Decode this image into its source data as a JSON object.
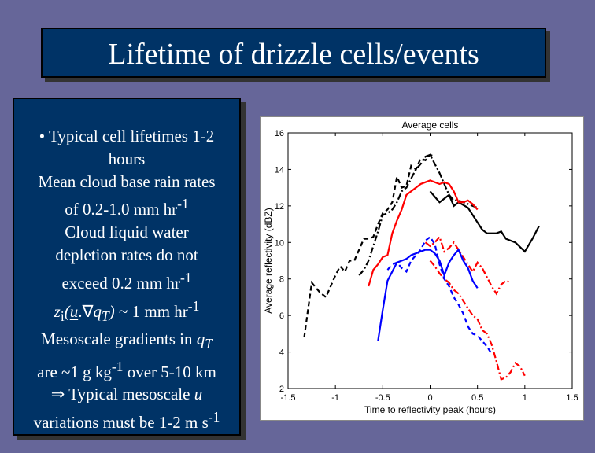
{
  "slide": {
    "title": "Lifetime of drizzle cells/events",
    "bullets": {
      "l1": "• Typical cell lifetimes 1-2",
      "l2": "hours",
      "l3": "Mean cloud base rain rates",
      "l4a": "of 0.2-1.0 mm hr",
      "l4sup": "-1",
      "l5": "Cloud liquid water",
      "l6": "depletion rates do not",
      "l7a": "exceed 0.2 mm hr",
      "l7sup": "-1",
      "l8_z": "z",
      "l8_i": "i",
      "l8_open": "(",
      "l8_u": "u",
      "l8_dot": ".",
      "l8_nabla": "∇",
      "l8_q": "q",
      "l8_T": "T",
      "l8_close": ")",
      "l8_rest": " ~ 1 mm hr",
      "l8sup": "-1",
      "l9a": "Mesoscale gradients in ",
      "l9_q": "q",
      "l9_T": "T",
      "l10a": "are ~1 g kg",
      "l10sup": "-1",
      "l10b": " over 5-10 km",
      "l11a": "⇒ Typical mesoscale ",
      "l11_u": "u",
      "l12a": "variations must be 1-2 m s",
      "l12sup": "-1"
    }
  },
  "chart_data": {
    "type": "line",
    "title": "Average cells",
    "xlabel": "Time to reflectivity peak (hours)",
    "ylabel": "Average reflectivity (dBZ)",
    "xlim": [
      -1.5,
      1.5
    ],
    "ylim": [
      2,
      16
    ],
    "xticks": [
      -1.5,
      -1,
      -0.5,
      0,
      0.5,
      1,
      1.5
    ],
    "xtick_labels": [
      "-1.5",
      "-1",
      "-0.5",
      "0",
      "0.5",
      "1",
      "1.5"
    ],
    "yticks": [
      2,
      4,
      6,
      8,
      10,
      12,
      14,
      16
    ],
    "ytick_labels": [
      "2",
      "4",
      "6",
      "8",
      "10",
      "12",
      "14",
      "16"
    ],
    "series": [
      {
        "color": "#000000",
        "dash": "dashed",
        "x": [
          -1.33,
          -1.25,
          -1.17,
          -1.1,
          -1.0,
          -0.95,
          -0.9,
          -0.85,
          -0.8,
          -0.7,
          -0.65,
          -0.6,
          -0.55,
          -0.5,
          -0.45,
          -0.4,
          -0.35,
          -0.3,
          -0.25,
          -0.2,
          -0.15,
          -0.1,
          -0.05,
          0.0,
          0.05
        ],
        "y": [
          4.8,
          7.8,
          7.3,
          7.0,
          8.2,
          8.7,
          8.4,
          9.0,
          9.0,
          10.2,
          10.2,
          10.3,
          11.0,
          11.6,
          11.8,
          12.2,
          13.6,
          13.0,
          13.1,
          14.2,
          14.0,
          14.6,
          14.5,
          14.8,
          14.7
        ]
      },
      {
        "color": "#000000",
        "dash": "dashdot",
        "x": [
          -0.75,
          -0.7,
          -0.65,
          -0.6,
          -0.55,
          -0.5,
          -0.45,
          -0.4,
          -0.35,
          -0.3,
          -0.25,
          -0.2,
          -0.15,
          -0.1,
          -0.05,
          0.0,
          0.05,
          0.1,
          0.15,
          0.2,
          0.25,
          0.3,
          0.35,
          0.4,
          0.45,
          0.5
        ],
        "y": [
          8.2,
          8.5,
          9.0,
          9.8,
          10.6,
          11.5,
          11.6,
          11.8,
          12.2,
          12.8,
          13.0,
          13.5,
          14.0,
          14.3,
          14.7,
          14.8,
          14.3,
          13.8,
          13.2,
          12.6,
          12.3,
          12.3,
          12.2,
          12.1,
          12.0,
          11.9
        ]
      },
      {
        "color": "#000000",
        "dash": "solid",
        "x": [
          0.0,
          0.1,
          0.2,
          0.25,
          0.3,
          0.4,
          0.5,
          0.55,
          0.6,
          0.7,
          0.75,
          0.8,
          0.9,
          1.0,
          1.08,
          1.15
        ],
        "y": [
          12.8,
          12.2,
          12.6,
          12.0,
          12.2,
          11.9,
          11.1,
          10.7,
          10.5,
          10.5,
          10.6,
          10.2,
          10.0,
          9.5,
          10.2,
          10.9
        ]
      },
      {
        "color": "#ff0000",
        "dash": "solid",
        "x": [
          -0.65,
          -0.6,
          -0.55,
          -0.5,
          -0.45,
          -0.4,
          -0.35,
          -0.3,
          -0.25,
          -0.2,
          -0.15,
          -0.1,
          -0.05,
          0.0,
          0.05,
          0.1,
          0.15,
          0.2,
          0.25,
          0.3,
          0.35,
          0.4,
          0.45,
          0.5
        ],
        "y": [
          7.6,
          8.5,
          8.8,
          9.2,
          9.3,
          10.5,
          11.2,
          11.8,
          12.6,
          12.8,
          13.0,
          13.2,
          13.3,
          13.4,
          13.3,
          13.2,
          13.3,
          13.2,
          12.8,
          12.2,
          12.2,
          12.3,
          12.1,
          11.8
        ]
      },
      {
        "color": "#ff0000",
        "dash": "dashdot",
        "x": [
          -0.05,
          0.0,
          0.05,
          0.1,
          0.15,
          0.2,
          0.25,
          0.3,
          0.35,
          0.4,
          0.45,
          0.5,
          0.55,
          0.6,
          0.65,
          0.7,
          0.75,
          0.8,
          0.85
        ],
        "y": [
          10.0,
          9.8,
          10.0,
          10.3,
          9.5,
          9.7,
          10.0,
          9.6,
          9.2,
          8.8,
          8.4,
          8.9,
          8.6,
          8.1,
          7.6,
          7.2,
          7.7,
          7.9,
          7.8
        ]
      },
      {
        "color": "#ff0000",
        "dash": "dashdot",
        "x": [
          0.0,
          0.05,
          0.1,
          0.15,
          0.2,
          0.25,
          0.3,
          0.35,
          0.4,
          0.45,
          0.5,
          0.55,
          0.6,
          0.65,
          0.7,
          0.75,
          0.8,
          0.85,
          0.9,
          0.95,
          1.0
        ],
        "y": [
          9.0,
          8.7,
          8.3,
          8.0,
          7.8,
          7.4,
          7.2,
          6.8,
          6.4,
          6.0,
          5.8,
          5.2,
          5.0,
          4.4,
          3.5,
          2.5,
          2.6,
          2.9,
          3.4,
          3.2,
          2.7
        ]
      },
      {
        "color": "#0000ff",
        "dash": "solid",
        "x": [
          -0.55,
          -0.5,
          -0.45,
          -0.4,
          -0.35,
          -0.3,
          -0.25,
          -0.2,
          -0.15,
          -0.1,
          -0.05,
          0.0,
          0.05,
          0.1,
          0.15,
          0.2,
          0.25,
          0.3,
          0.35,
          0.4,
          0.45,
          0.5
        ],
        "y": [
          4.6,
          6.3,
          7.9,
          8.4,
          8.9,
          9.0,
          9.1,
          9.3,
          9.4,
          9.5,
          9.6,
          9.6,
          9.4,
          9.0,
          8.2,
          8.9,
          9.3,
          9.6,
          9.0,
          8.6,
          7.9,
          7.5
        ]
      },
      {
        "color": "#0000ff",
        "dash": "dashed",
        "x": [
          -0.45,
          -0.4,
          -0.35,
          -0.3,
          -0.25,
          -0.2,
          -0.15,
          -0.1,
          -0.05,
          0.0,
          0.05,
          0.1,
          0.15,
          0.2,
          0.25,
          0.3,
          0.35,
          0.4,
          0.45,
          0.5,
          0.55,
          0.6,
          0.65
        ],
        "y": [
          8.5,
          8.8,
          8.9,
          8.6,
          8.4,
          9.0,
          9.3,
          9.6,
          10.1,
          10.3,
          9.9,
          8.8,
          8.0,
          7.6,
          7.0,
          6.6,
          6.1,
          5.4,
          5.0,
          4.9,
          4.6,
          4.3,
          3.9
        ]
      }
    ]
  }
}
